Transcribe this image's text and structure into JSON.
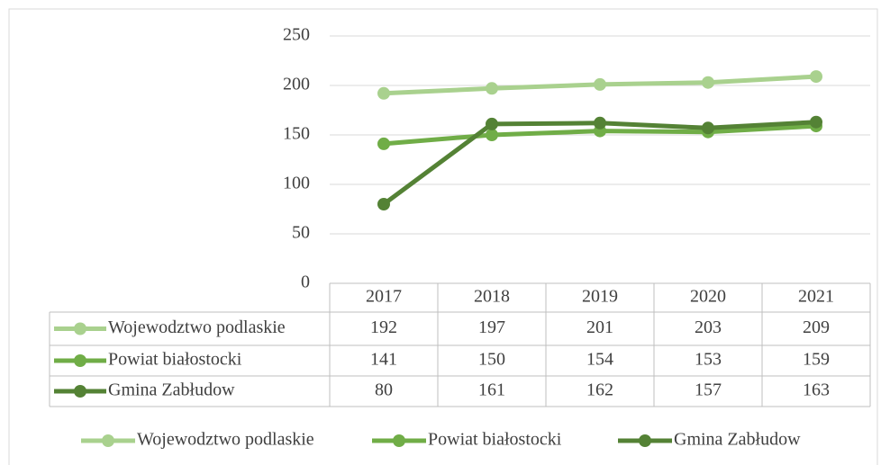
{
  "chart_data": {
    "type": "line",
    "categories": [
      "2017",
      "2018",
      "2019",
      "2020",
      "2021"
    ],
    "series": [
      {
        "name": "Wojewodztwo podlaskie",
        "color": "#a9d18e",
        "values": [
          192,
          197,
          201,
          203,
          209
        ]
      },
      {
        "name": "Powiat białostocki",
        "color": "#70ad47",
        "values": [
          141,
          150,
          154,
          153,
          159
        ]
      },
      {
        "name": "Gmina Zabłudow",
        "color": "#548235",
        "values": [
          80,
          161,
          162,
          157,
          163
        ]
      }
    ],
    "ylim": [
      0,
      250
    ],
    "yticks": [
      0,
      50,
      100,
      150,
      200,
      250
    ],
    "grid": true,
    "data_table": true,
    "legend": "bottom"
  }
}
